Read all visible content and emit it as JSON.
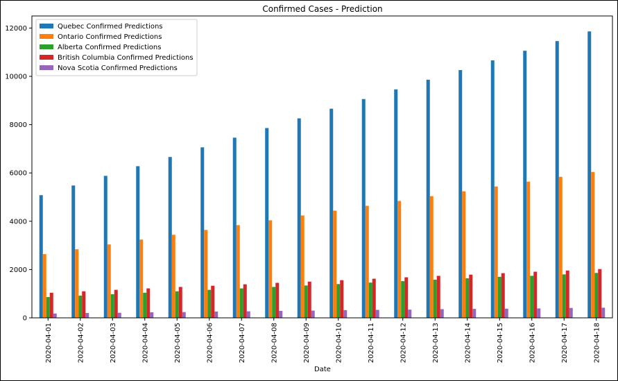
{
  "chart_data": {
    "type": "bar",
    "title": "Confirmed Cases - Prediction",
    "xlabel": "Date",
    "ylabel": "",
    "ylim": [
      0,
      12500
    ],
    "yticks": [
      0,
      2000,
      4000,
      6000,
      8000,
      10000,
      12000
    ],
    "legend_position": "top-left",
    "grid": false,
    "categories": [
      "2020-04-01",
      "2020-04-02",
      "2020-04-03",
      "2020-04-04",
      "2020-04-05",
      "2020-04-06",
      "2020-04-07",
      "2020-04-08",
      "2020-04-09",
      "2020-04-10",
      "2020-04-11",
      "2020-04-12",
      "2020-04-13",
      "2020-04-14",
      "2020-04-15",
      "2020-04-16",
      "2020-04-17",
      "2020-04-18"
    ],
    "series": [
      {
        "name": "Quebec Confirmed Predictions",
        "color": "#1f77b4",
        "values": [
          5080,
          5480,
          5880,
          6280,
          6660,
          7060,
          7460,
          7860,
          8260,
          8660,
          9060,
          9460,
          9860,
          10260,
          10660,
          11060,
          11460,
          11860
        ]
      },
      {
        "name": "Ontario Confirmed Predictions",
        "color": "#ff7f0e",
        "values": [
          2640,
          2840,
          3040,
          3240,
          3440,
          3640,
          3840,
          4040,
          4240,
          4440,
          4640,
          4840,
          5040,
          5240,
          5440,
          5640,
          5840,
          6040
        ]
      },
      {
        "name": "Alberta Confirmed Predictions",
        "color": "#2ca02c",
        "values": [
          860,
          920,
          980,
          1040,
          1100,
          1160,
          1220,
          1280,
          1340,
          1400,
          1460,
          1520,
          1580,
          1640,
          1700,
          1740,
          1800,
          1860
        ]
      },
      {
        "name": "British Columbia Confirmed Predictions",
        "color": "#d62728",
        "values": [
          1040,
          1100,
          1160,
          1220,
          1280,
          1330,
          1390,
          1450,
          1500,
          1560,
          1620,
          1680,
          1740,
          1790,
          1850,
          1910,
          1960,
          2020
        ]
      },
      {
        "name": "Nova Scotia Confirmed Predictions",
        "color": "#9467bd",
        "values": [
          180,
          200,
          210,
          230,
          240,
          260,
          270,
          290,
          300,
          320,
          330,
          340,
          360,
          370,
          380,
          390,
          410,
          420
        ]
      }
    ]
  }
}
